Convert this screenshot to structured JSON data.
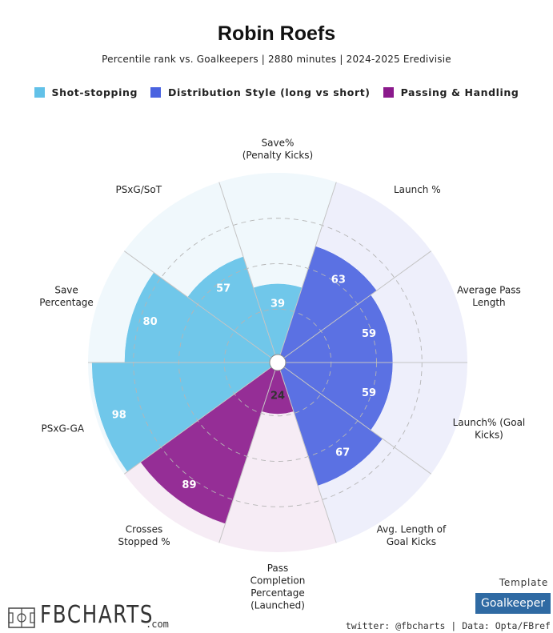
{
  "header": {
    "title": "Robin Roefs",
    "subtitle": "Percentile rank vs. Goalkeepers | 2880 minutes | 2024-2025 Eredivisie"
  },
  "legend": [
    {
      "label": "Shot-stopping",
      "color": "#62c1e8"
    },
    {
      "label": "Distribution Style (long vs short)",
      "color": "#4a63e0"
    },
    {
      "label": "Passing & Handling",
      "color": "#8b1a8c"
    }
  ],
  "chart_data": {
    "type": "polar-bar",
    "rlim": [
      0,
      100
    ],
    "grid": true,
    "metrics": [
      {
        "label": "Save%\n(Penalty Kicks)",
        "value": 39,
        "group": "Shot-stopping"
      },
      {
        "label": "Launch %",
        "value": 63,
        "group": "Distribution Style (long vs short)"
      },
      {
        "label": "Average Pass\nLength",
        "value": 59,
        "group": "Distribution Style (long vs short)"
      },
      {
        "label": "Launch% (Goal\nKicks)",
        "value": 59,
        "group": "Distribution Style (long vs short)"
      },
      {
        "label": "Avg. Length of\nGoal Kicks",
        "value": 67,
        "group": "Distribution Style (long vs short)"
      },
      {
        "label": "Pass\nCompletion\nPercentage\n(Launched)",
        "value": 24,
        "group": "Passing & Handling"
      },
      {
        "label": "Crosses\nStopped %",
        "value": 89,
        "group": "Passing & Handling"
      },
      {
        "label": "PSxG-GA",
        "value": 98,
        "group": "Shot-stopping"
      },
      {
        "label": "Save\nPercentage",
        "value": 80,
        "group": "Shot-stopping"
      },
      {
        "label": "PSxG/SoT",
        "value": 57,
        "group": "Shot-stopping"
      }
    ],
    "colors": {
      "Shot-stopping": {
        "bar": "#62c1e8",
        "bg": "#f0f8fc"
      },
      "Distribution Style (long vs short)": {
        "bar": "#4a63e0",
        "bg": "#eeeffb"
      },
      "Passing & Handling": {
        "bar": "#8b1a8c",
        "bg": "#f6ecf5"
      }
    }
  },
  "branding": {
    "logo_text": "FBCHARTS",
    "logo_suffix": ".com",
    "template_label": "Template",
    "template_value": "Goalkeeper",
    "credits": "twitter: @fbcharts | Data: Opta/FBref"
  }
}
